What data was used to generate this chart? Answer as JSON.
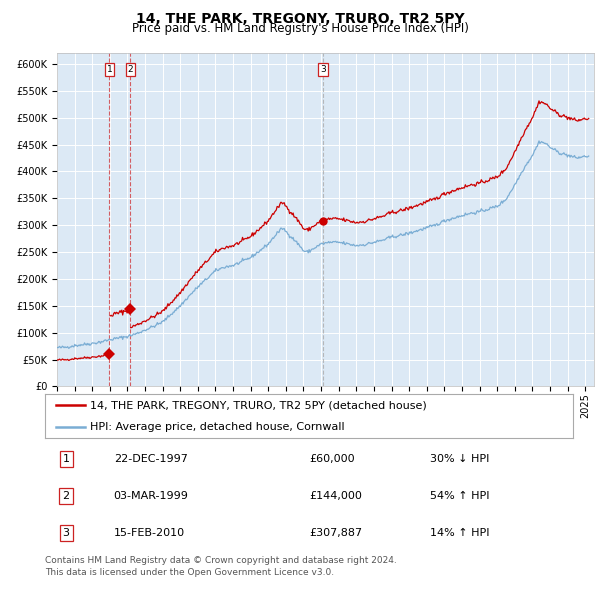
{
  "title": "14, THE PARK, TREGONY, TRURO, TR2 5PY",
  "subtitle": "Price paid vs. HM Land Registry's House Price Index (HPI)",
  "ylim": [
    0,
    620000
  ],
  "yticks": [
    0,
    50000,
    100000,
    150000,
    200000,
    250000,
    300000,
    350000,
    400000,
    450000,
    500000,
    550000,
    600000
  ],
  "xlim_start": 1995.0,
  "xlim_end": 2025.5,
  "background_color": "#dce9f5",
  "legend_line1": "14, THE PARK, TREGONY, TRURO, TR2 5PY (detached house)",
  "legend_line2": "HPI: Average price, detached house, Cornwall",
  "red_color": "#cc0000",
  "blue_color": "#7aadd4",
  "sale_dates": [
    1997.98,
    1999.17,
    2010.12
  ],
  "sale_prices": [
    60000,
    144000,
    307887
  ],
  "sale_labels": [
    "1",
    "2",
    "3"
  ],
  "table_data": [
    [
      "1",
      "22-DEC-1997",
      "£60,000",
      "30% ↓ HPI"
    ],
    [
      "2",
      "03-MAR-1999",
      "£144,000",
      "54% ↑ HPI"
    ],
    [
      "3",
      "15-FEB-2010",
      "£307,887",
      "14% ↑ HPI"
    ]
  ],
  "footer": "Contains HM Land Registry data © Crown copyright and database right 2024.\nThis data is licensed under the Open Government Licence v3.0.",
  "title_fontsize": 10,
  "subtitle_fontsize": 8.5,
  "tick_fontsize": 7,
  "legend_fontsize": 8,
  "table_fontsize": 8,
  "footer_fontsize": 6.5
}
